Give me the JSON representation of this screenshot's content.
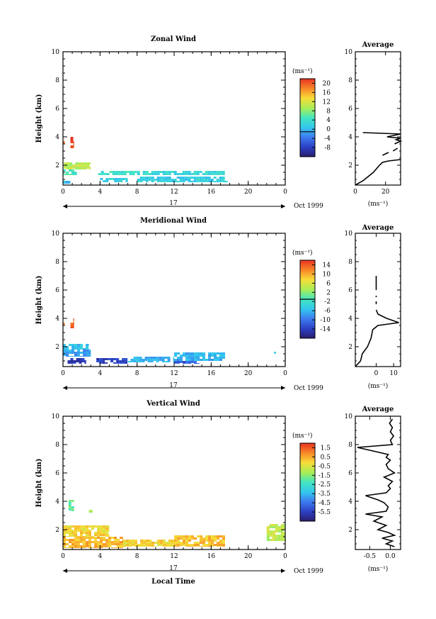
{
  "figure": {
    "xlabel": "Local Time",
    "date_label": "Oct 1999",
    "day_label": "17"
  },
  "chart_data": [
    {
      "type": "heatmap",
      "title": "Zonal Wind",
      "ylabel": "Height (km)",
      "xlabel": "Local Time",
      "xlim": [
        0,
        24
      ],
      "ylim": [
        0.6,
        10
      ],
      "xticks": [
        "0",
        "4",
        "8",
        "12",
        "16",
        "20",
        "0"
      ],
      "yticks": [
        "2",
        "4",
        "6",
        "8",
        "10"
      ],
      "colorbar": {
        "unit": "(ms⁻¹)",
        "ticks": [
          "20",
          "16",
          "12",
          "8",
          "4",
          "0",
          "-4",
          "-8"
        ],
        "range": [
          -10,
          22
        ]
      },
      "cells": [
        {
          "x0": 0.8,
          "x1": 1.2,
          "y0": 3.2,
          "y1": 4.0,
          "value": 21
        },
        {
          "x0": 0.0,
          "x1": 0.2,
          "y0": 3.5,
          "y1": 3.7,
          "value": 20
        },
        {
          "x0": 0.1,
          "x1": 3.0,
          "y0": 1.7,
          "y1": 2.2,
          "value": 11
        },
        {
          "x0": 0.0,
          "x1": 1.5,
          "y0": 1.3,
          "y1": 1.7,
          "value": 6
        },
        {
          "x0": 3.8,
          "x1": 8.0,
          "y0": 1.3,
          "y1": 1.6,
          "value": 5
        },
        {
          "x0": 4.0,
          "x1": 7.0,
          "y0": 0.8,
          "y1": 1.1,
          "value": 3
        },
        {
          "x0": 8.0,
          "x1": 17.5,
          "y0": 1.3,
          "y1": 1.6,
          "value": 4
        },
        {
          "x0": 8.0,
          "x1": 17.8,
          "y0": 0.8,
          "y1": 1.2,
          "value": 3
        },
        {
          "x0": 0.0,
          "x1": 0.8,
          "y0": 0.7,
          "y1": 0.9,
          "value": 2
        }
      ],
      "average": {
        "title": "Average",
        "unit": "(ms⁻¹)",
        "xticks": [
          "0",
          "20"
        ],
        "xlim": [
          0,
          30
        ],
        "ylim": [
          0.6,
          10
        ],
        "profile": [
          [
            0,
            0.6
          ],
          [
            5,
            0.9
          ],
          [
            12,
            1.5
          ],
          [
            16,
            2.0
          ],
          [
            18,
            2.2
          ],
          [
            22,
            2.3
          ],
          [
            30,
            2.4
          ]
        ],
        "profile2": [
          [
            26,
            3.5
          ],
          [
            30,
            3.7
          ],
          [
            27,
            3.8
          ],
          [
            30,
            3.9
          ],
          [
            21,
            4.0
          ],
          [
            30,
            4.2
          ],
          [
            5,
            4.3
          ]
        ],
        "profile3": [
          [
            18,
            2.7
          ],
          [
            22,
            2.9
          ]
        ],
        "profile4": [
          [
            25,
            3.0
          ],
          [
            28,
            3.2
          ]
        ]
      }
    },
    {
      "type": "heatmap",
      "title": "Meridional Wind",
      "ylabel": "Height (km)",
      "xlabel": "Local Time",
      "xlim": [
        0,
        24
      ],
      "ylim": [
        0.6,
        10
      ],
      "xticks": [
        "0",
        "4",
        "8",
        "12",
        "16",
        "20",
        "0"
      ],
      "yticks": [
        "2",
        "4",
        "6",
        "8",
        "10"
      ],
      "colorbar": {
        "unit": "(ms⁻¹)",
        "ticks": [
          "14",
          "10",
          "6",
          "2",
          "-2",
          "-6",
          "-10",
          "-14"
        ],
        "range": [
          -16,
          16
        ]
      },
      "cells": [
        {
          "x0": 0.8,
          "x1": 1.2,
          "y0": 3.3,
          "y1": 4.0,
          "value": 14
        },
        {
          "x0": 0.0,
          "x1": 0.2,
          "y0": 3.5,
          "y1": 3.7,
          "value": 13
        },
        {
          "x0": 0.0,
          "x1": 2.8,
          "y0": 1.8,
          "y1": 2.2,
          "value": -4
        },
        {
          "x0": 0.0,
          "x1": 3.0,
          "y0": 1.3,
          "y1": 1.8,
          "value": -6
        },
        {
          "x0": 0.5,
          "x1": 2.5,
          "y0": 0.8,
          "y1": 1.2,
          "value": -13
        },
        {
          "x0": 3.6,
          "x1": 7.0,
          "y0": 0.8,
          "y1": 1.2,
          "value": -12
        },
        {
          "x0": 7.0,
          "x1": 12.0,
          "y0": 0.9,
          "y1": 1.3,
          "value": -5
        },
        {
          "x0": 12.0,
          "x1": 17.5,
          "y0": 1.0,
          "y1": 1.6,
          "value": -5
        },
        {
          "x0": 12.0,
          "x1": 15.0,
          "y0": 0.8,
          "y1": 1.0,
          "value": -10
        },
        {
          "x0": 22.8,
          "x1": 23.0,
          "y0": 1.5,
          "y1": 1.8,
          "value": -5
        }
      ],
      "average": {
        "title": "Average",
        "unit": "(ms⁻¹)",
        "xticks": [
          "0",
          "10"
        ],
        "xlim": [
          -12,
          14
        ],
        "ylim": [
          0.6,
          10
        ],
        "profile": [
          [
            -12,
            0.6
          ],
          [
            -9,
            1.0
          ],
          [
            -8,
            1.5
          ],
          [
            -5,
            2.0
          ],
          [
            -3,
            2.6
          ],
          [
            -2,
            3.2
          ],
          [
            1,
            3.5
          ],
          [
            13,
            3.7
          ],
          [
            6,
            4.0
          ],
          [
            1,
            4.3
          ],
          [
            0,
            4.6
          ]
        ],
        "profile2": [
          [
            0,
            6.0
          ],
          [
            0,
            7.0
          ]
        ],
        "profile3": [
          [
            0,
            5.0
          ],
          [
            0,
            5.2
          ]
        ],
        "profile4": [
          [
            0,
            5.5
          ],
          [
            0,
            5.6
          ]
        ]
      }
    },
    {
      "type": "heatmap",
      "title": "Vertical Wind",
      "ylabel": "Height (km)",
      "xlabel": "Local Time",
      "xlim": [
        0,
        24
      ],
      "ylim": [
        0.6,
        10
      ],
      "xticks": [
        "0",
        "4",
        "8",
        "12",
        "16",
        "20",
        "0"
      ],
      "yticks": [
        "2",
        "4",
        "6",
        "8",
        "10"
      ],
      "colorbar": {
        "unit": "(ms⁻¹)",
        "ticks": [
          "1.5",
          "0.5",
          "-0.5",
          "-1.5",
          "-2.5",
          "-3.5",
          "-4.5",
          "-5.5"
        ],
        "range": [
          -6.5,
          2.5
        ]
      },
      "cells": [
        {
          "x0": 0.6,
          "x1": 1.2,
          "y0": 3.3,
          "y1": 4.1,
          "value": -1.6
        },
        {
          "x0": 2.8,
          "x1": 3.2,
          "y0": 3.2,
          "y1": 3.4,
          "value": -1.0
        },
        {
          "x0": 0.0,
          "x1": 5.0,
          "y0": 1.5,
          "y1": 2.3,
          "value": 0.3
        },
        {
          "x0": 0.0,
          "x1": 6.5,
          "y0": 0.7,
          "y1": 1.5,
          "value": 0.7
        },
        {
          "x0": 6.5,
          "x1": 12.0,
          "y0": 0.8,
          "y1": 1.3,
          "value": 0.3
        },
        {
          "x0": 12.0,
          "x1": 17.5,
          "y0": 0.8,
          "y1": 1.6,
          "value": 0.6
        },
        {
          "x0": 22.0,
          "x1": 24.0,
          "y0": 1.2,
          "y1": 2.4,
          "value": -0.6
        }
      ],
      "average": {
        "title": "Average",
        "unit": "(ms⁻¹)",
        "xticks": [
          "-0.5",
          "0.0"
        ],
        "xlim": [
          -0.85,
          0.25
        ],
        "ylim": [
          0.6,
          10
        ],
        "profile": [
          [
            0.1,
            0.8
          ],
          [
            -0.1,
            1.0
          ],
          [
            0.05,
            1.2
          ],
          [
            -0.2,
            1.4
          ],
          [
            0.1,
            1.6
          ],
          [
            -0.05,
            1.8
          ],
          [
            -0.3,
            2.0
          ],
          [
            -0.1,
            2.3
          ],
          [
            -0.4,
            2.6
          ],
          [
            -0.2,
            2.9
          ],
          [
            -0.6,
            3.1
          ],
          [
            -0.1,
            3.3
          ],
          [
            -0.05,
            3.6
          ],
          [
            -0.15,
            3.9
          ],
          [
            -0.3,
            4.1
          ],
          [
            -0.6,
            4.4
          ],
          [
            -0.1,
            4.6
          ],
          [
            0.0,
            4.9
          ],
          [
            -0.05,
            5.1
          ],
          [
            0.05,
            5.4
          ],
          [
            -0.15,
            5.7
          ],
          [
            0.1,
            6.0
          ],
          [
            -0.05,
            6.3
          ],
          [
            -0.1,
            6.6
          ],
          [
            0.0,
            6.9
          ],
          [
            -0.1,
            7.1
          ],
          [
            -0.05,
            7.3
          ],
          [
            -0.5,
            7.6
          ],
          [
            -0.8,
            7.8
          ],
          [
            0.05,
            8.0
          ],
          [
            0.0,
            8.3
          ],
          [
            0.08,
            8.6
          ],
          [
            0.0,
            8.9
          ],
          [
            0.05,
            9.2
          ],
          [
            -0.02,
            9.5
          ],
          [
            0.05,
            9.8
          ]
        ],
        "profile2": [],
        "profile3": [],
        "profile4": []
      }
    }
  ]
}
